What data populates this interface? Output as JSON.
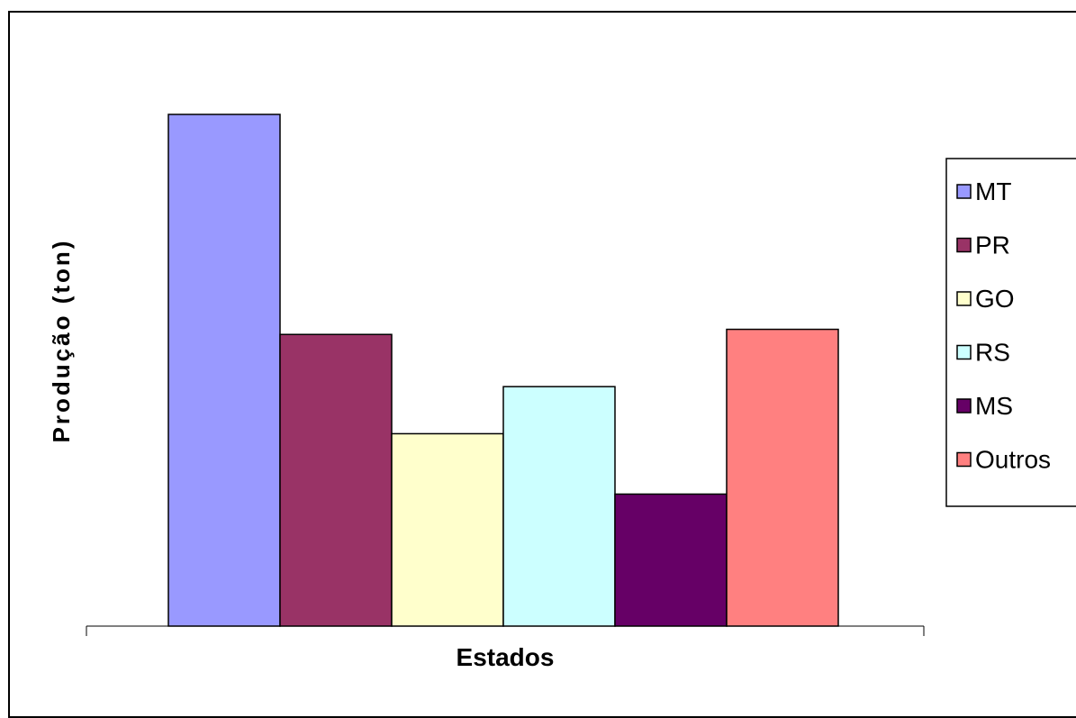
{
  "chart_data": {
    "type": "bar",
    "title": "",
    "xlabel": "Estados",
    "ylabel": "Produção (ton)",
    "ylim": [
      0,
      100
    ],
    "grid": false,
    "legend_position": "right",
    "series": [
      {
        "name": "MT",
        "value": 100,
        "color": "#9999ff"
      },
      {
        "name": "PR",
        "value": 57,
        "color": "#993366"
      },
      {
        "name": "GO",
        "value": 37.6,
        "color": "#ffffcc"
      },
      {
        "name": "RS",
        "value": 46.8,
        "color": "#ccffff"
      },
      {
        "name": "MS",
        "value": 25.8,
        "color": "#660066"
      },
      {
        "name": "Outros",
        "value": 58,
        "color": "#ff8080"
      }
    ]
  }
}
